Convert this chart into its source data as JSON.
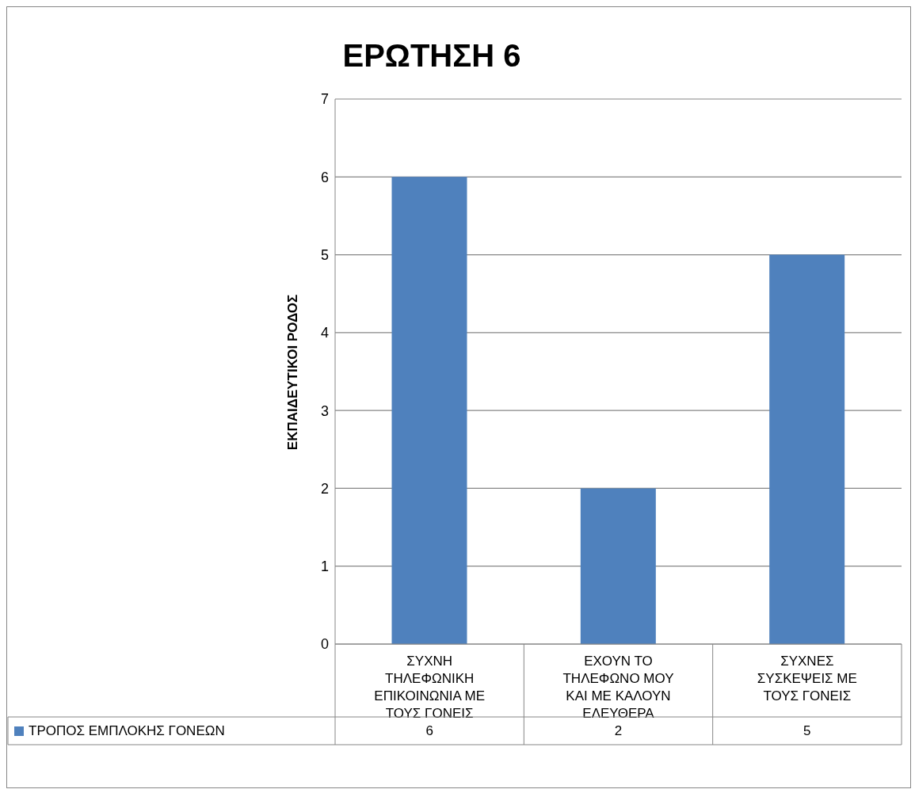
{
  "chart_data": {
    "type": "bar",
    "title": "ΕΡΩΤΗΣΗ 6",
    "ylabel": "ΕΚΠΑΙΔΕΥΤΙΚΟΙ ΡΟΔΟΣ",
    "categories": [
      "ΣΥΧΝΗ ΤΗΛΕΦΩΝΙΚΗ ΕΠΙΚΟΙΝΩΝΙΑ ΜΕ ΤΟΥΣ ΓΟΝΕΙΣ",
      "ΕΧΟΥΝ ΤΟ ΤΗΛΕΦΩΝΟ ΜΟΥ ΚΑΙ ΜΕ ΚΑΛΟΥΝ ΕΛΕΥΘΕΡΑ",
      "ΣΥΧΝΕΣ ΣΥΣΚΕΨΕΙΣ ΜΕ ΤΟΥΣ ΓΟΝΕΙΣ"
    ],
    "series": [
      {
        "name": "ΤΡΟΠΟΣ ΕΜΠΛΟΚΗΣ ΓΟΝΕΩΝ",
        "color": "#4f81bd",
        "values": [
          6,
          2,
          5
        ]
      }
    ],
    "ylim": [
      0,
      7
    ],
    "yticks": [
      0,
      1,
      2,
      3,
      4,
      5,
      6,
      7
    ],
    "grid": "y",
    "legend": "bottom left",
    "data_labels": true
  }
}
